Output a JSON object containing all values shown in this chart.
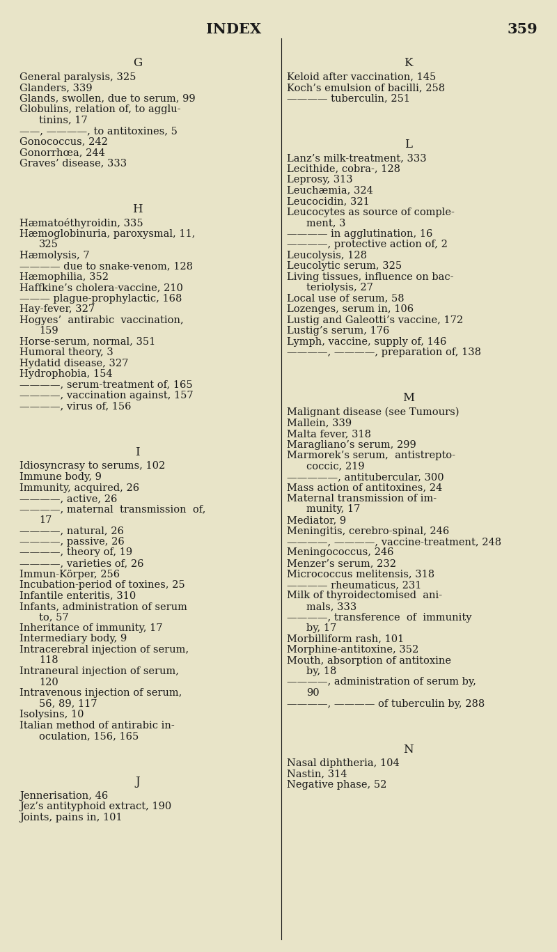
{
  "title": "INDEX",
  "page_num": "359",
  "bg_color": "#e8e4c8",
  "text_color": "#1a1a1a",
  "title_fontsize": 15,
  "body_fontsize": 10.5,
  "section_fontsize": 12,
  "fig_width": 8.0,
  "fig_height": 13.67,
  "dpi": 100,
  "left_col": [
    {
      "type": "section",
      "text": "G"
    },
    {
      "type": "entry",
      "text": "General paralysis, 325"
    },
    {
      "type": "entry",
      "text": "Glanders, 339"
    },
    {
      "type": "entry",
      "text": "Glands, swollen, due to serum, 99"
    },
    {
      "type": "entry",
      "text": "Globulins, relation of, to agglu-"
    },
    {
      "type": "continuation",
      "text": "tinins, 17"
    },
    {
      "type": "entry",
      "text": "——, ————, to antitoxines, 5"
    },
    {
      "type": "entry",
      "text": "Gonococcus, 242"
    },
    {
      "type": "entry",
      "text": "Gonorrhœa, 244"
    },
    {
      "type": "entry",
      "text": "Graves’ disease, 333"
    },
    {
      "type": "blank",
      "lines": 2.5
    },
    {
      "type": "section",
      "text": "H"
    },
    {
      "type": "entry",
      "text": "Hæmatoéthyroidin, 335"
    },
    {
      "type": "entry",
      "text": "Hæmoglobinuria, paroxysmal, 11,"
    },
    {
      "type": "continuation",
      "text": "325"
    },
    {
      "type": "entry",
      "text": "Hæmolysis, 7"
    },
    {
      "type": "entry",
      "text": "———— due to snake-venom, 128"
    },
    {
      "type": "entry",
      "text": "Hæmophilia, 352"
    },
    {
      "type": "entry",
      "text": "Haffkine’s cholera-vaccine, 210"
    },
    {
      "type": "entry",
      "text": "——— plague-prophylactic, 168"
    },
    {
      "type": "entry",
      "text": "Hay-fever, 327"
    },
    {
      "type": "entry",
      "text": "Hogyes’  antirabic  vaccination,"
    },
    {
      "type": "continuation",
      "text": "159"
    },
    {
      "type": "entry",
      "text": "Horse-serum, normal, 351"
    },
    {
      "type": "entry",
      "text": "Humoral theory, 3"
    },
    {
      "type": "entry",
      "text": "Hydatid disease, 327"
    },
    {
      "type": "entry",
      "text": "Hydrophobia, 154"
    },
    {
      "type": "entry",
      "text": "————, serum-treatment of, 165"
    },
    {
      "type": "entry",
      "text": "————, vaccination against, 157"
    },
    {
      "type": "entry",
      "text": "————, virus of, 156"
    },
    {
      "type": "blank",
      "lines": 2.5
    },
    {
      "type": "section",
      "text": "I"
    },
    {
      "type": "entry",
      "text": "Idiosyncrasy to serums, 102"
    },
    {
      "type": "entry",
      "text": "Immune body, 9"
    },
    {
      "type": "entry",
      "text": "Immunity, acquired, 26"
    },
    {
      "type": "entry",
      "text": "————, active, 26"
    },
    {
      "type": "entry",
      "text": "————, maternal  transmission  of,"
    },
    {
      "type": "continuation",
      "text": "17"
    },
    {
      "type": "entry",
      "text": "————, natural, 26"
    },
    {
      "type": "entry",
      "text": "————, passive, 26"
    },
    {
      "type": "entry",
      "text": "————, theory of, 19"
    },
    {
      "type": "entry",
      "text": "————, varieties of, 26"
    },
    {
      "type": "entry",
      "text": "Immun-Körper, 256"
    },
    {
      "type": "entry",
      "text": "Incubation-period of toxines, 25"
    },
    {
      "type": "entry",
      "text": "Infantile enteritis, 310"
    },
    {
      "type": "entry",
      "text": "Infants, administration of serum"
    },
    {
      "type": "continuation",
      "text": "to, 57"
    },
    {
      "type": "entry",
      "text": "Inheritance of immunity, 17"
    },
    {
      "type": "entry",
      "text": "Intermediary body, 9"
    },
    {
      "type": "entry",
      "text": "Intracerebral injection of serum,"
    },
    {
      "type": "continuation",
      "text": "118"
    },
    {
      "type": "entry",
      "text": "Intraneural injection of serum,"
    },
    {
      "type": "continuation",
      "text": "120"
    },
    {
      "type": "entry",
      "text": "Intravenous injection of serum,"
    },
    {
      "type": "continuation",
      "text": "56, 89, 117"
    },
    {
      "type": "entry",
      "text": "Isolysins, 10"
    },
    {
      "type": "entry",
      "text": "Italian method of antirabic in-"
    },
    {
      "type": "continuation",
      "text": "oculation, 156, 165"
    },
    {
      "type": "blank",
      "lines": 2.5
    },
    {
      "type": "section",
      "text": "J"
    },
    {
      "type": "entry",
      "text": "Jennerisation, 46"
    },
    {
      "type": "entry",
      "text": "Jez’s antityphoid extract, 190"
    },
    {
      "type": "entry",
      "text": "Joints, pains in, 101"
    }
  ],
  "right_col": [
    {
      "type": "section",
      "text": "K"
    },
    {
      "type": "entry",
      "text": "Keloid after vaccination, 145"
    },
    {
      "type": "entry",
      "text": "Koch’s emulsion of bacilli, 258"
    },
    {
      "type": "entry",
      "text": "———— tuberculin, 251"
    },
    {
      "type": "blank",
      "lines": 2.5
    },
    {
      "type": "section",
      "text": "L"
    },
    {
      "type": "entry",
      "text": "Lanz’s milk-treatment, 333"
    },
    {
      "type": "entry",
      "text": "Lecithide, cobra-, 128"
    },
    {
      "type": "entry",
      "text": "Leprosy, 313"
    },
    {
      "type": "entry",
      "text": "Leuchæmia, 324"
    },
    {
      "type": "entry",
      "text": "Leucocidin, 321"
    },
    {
      "type": "entry",
      "text": "Leucocytes as source of comple-"
    },
    {
      "type": "continuation",
      "text": "ment, 3"
    },
    {
      "type": "entry",
      "text": "———— in agglutination, 16"
    },
    {
      "type": "entry",
      "text": "————, protective action of, 2"
    },
    {
      "type": "entry",
      "text": "Leucolysis, 128"
    },
    {
      "type": "entry",
      "text": "Leucolytic serum, 325"
    },
    {
      "type": "entry",
      "text": "Living tissues, influence on bac-"
    },
    {
      "type": "continuation",
      "text": "teriolysis, 27"
    },
    {
      "type": "entry",
      "text": "Local use of serum, 58"
    },
    {
      "type": "entry",
      "text": "Lozenges, serum in, 106"
    },
    {
      "type": "entry",
      "text": "Lustig and Galeotti’s vaccine, 172"
    },
    {
      "type": "entry",
      "text": "Lustig’s serum, 176"
    },
    {
      "type": "entry",
      "text": "Lymph, vaccine, supply of, 146"
    },
    {
      "type": "entry",
      "text": "————, ————, preparation of, 138"
    },
    {
      "type": "blank",
      "lines": 2.5
    },
    {
      "type": "section",
      "text": "M"
    },
    {
      "type": "entry",
      "text": "Malignant disease (see Tumours)"
    },
    {
      "type": "entry",
      "text": "Mallein, 339"
    },
    {
      "type": "entry",
      "text": "Malta fever, 318"
    },
    {
      "type": "entry",
      "text": "Maragliano’s serum, 299"
    },
    {
      "type": "entry",
      "text": "Marmorek’s serum,  antistrepto-"
    },
    {
      "type": "continuation",
      "text": "coccic, 219"
    },
    {
      "type": "entry",
      "text": "—————, antitubercular, 300"
    },
    {
      "type": "entry",
      "text": "Mass action of antitoxines, 24"
    },
    {
      "type": "entry",
      "text": "Maternal transmission of im-"
    },
    {
      "type": "continuation",
      "text": "munity, 17"
    },
    {
      "type": "entry",
      "text": "Mediator, 9"
    },
    {
      "type": "entry",
      "text": "Meningitis, cerebro-spinal, 246"
    },
    {
      "type": "entry",
      "text": "————, ————, vaccine-treatment, 248"
    },
    {
      "type": "entry",
      "text": "Meningococcus, 246"
    },
    {
      "type": "entry",
      "text": "Menzer’s serum, 232"
    },
    {
      "type": "entry",
      "text": "Micrococcus melitensis, 318"
    },
    {
      "type": "entry",
      "text": "———— rheumaticus, 231"
    },
    {
      "type": "entry",
      "text": "Milk of thyroidectomised  ani-"
    },
    {
      "type": "continuation",
      "text": "mals, 333"
    },
    {
      "type": "entry",
      "text": "————, transference  of  immunity"
    },
    {
      "type": "continuation",
      "text": "by, 17"
    },
    {
      "type": "entry",
      "text": "Morbilliform rash, 101"
    },
    {
      "type": "entry",
      "text": "Morphine-antitoxine, 352"
    },
    {
      "type": "entry",
      "text": "Mouth, absorption of antitoxine"
    },
    {
      "type": "continuation",
      "text": "by, 18"
    },
    {
      "type": "entry",
      "text": "————, administration of serum by,"
    },
    {
      "type": "continuation",
      "text": "90"
    },
    {
      "type": "entry",
      "text": "————, ———— of tuberculin by, 288"
    },
    {
      "type": "blank",
      "lines": 2.5
    },
    {
      "type": "section",
      "text": "N"
    },
    {
      "type": "entry",
      "text": "Nasal diphtheria, 104"
    },
    {
      "type": "entry",
      "text": "Nastin, 314"
    },
    {
      "type": "entry",
      "text": "Negative phase, 52"
    }
  ]
}
